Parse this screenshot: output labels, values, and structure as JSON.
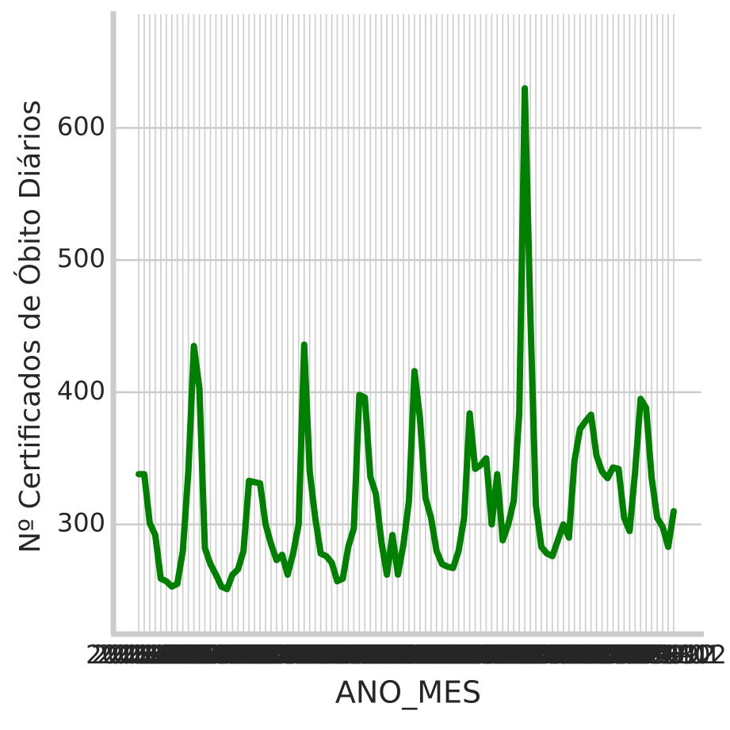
{
  "chart_data": {
    "type": "line",
    "x_label": "ANO_MES",
    "y_label": "Nº Certificados de Óbito Diários",
    "categories": [
      "2015-01",
      "2015-02",
      "2015-03",
      "2015-04",
      "2015-05",
      "2015-06",
      "2015-07",
      "2015-08",
      "2015-09",
      "2015-10",
      "2015-11",
      "2015-12",
      "2016-01",
      "2016-02",
      "2016-03",
      "2016-04",
      "2016-05",
      "2016-06",
      "2016-07",
      "2016-08",
      "2016-09",
      "2016-10",
      "2016-11",
      "2016-12",
      "2017-01",
      "2017-02",
      "2017-03",
      "2017-04",
      "2017-05",
      "2017-06",
      "2017-07",
      "2017-08",
      "2017-09",
      "2017-10",
      "2017-11",
      "2017-12",
      "2018-01",
      "2018-02",
      "2018-03",
      "2018-04",
      "2018-05",
      "2018-06",
      "2018-07",
      "2018-08",
      "2018-09",
      "2018-10",
      "2018-11",
      "2018-12",
      "2019-01",
      "2019-02",
      "2019-03",
      "2019-04",
      "2019-05",
      "2019-06",
      "2019-07",
      "2019-08",
      "2019-09",
      "2019-10",
      "2019-11",
      "2019-12",
      "2020-01",
      "2020-02",
      "2020-03",
      "2020-04",
      "2020-05",
      "2020-06",
      "2020-07",
      "2020-08",
      "2020-09",
      "2020-10",
      "2020-11",
      "2020-12",
      "2021-01",
      "2021-02",
      "2021-03",
      "2021-04",
      "2021-05",
      "2021-06",
      "2021-07",
      "2021-08",
      "2021-09",
      "2021-10",
      "2021-11",
      "2021-12",
      "2022-01",
      "2022-02",
      "2022-03",
      "2022-04",
      "2022-05",
      "2022-06",
      "2022-07",
      "2022-08",
      "2022-09",
      "2022-10",
      "2022-11",
      "2022-12",
      "2023-01",
      "2023-02"
    ],
    "series": [
      {
        "color": "#008000",
        "values": [
          338,
          338,
          301,
          292,
          259,
          257,
          253,
          255,
          280,
          340,
          435,
          403,
          282,
          270,
          262,
          253,
          251,
          262,
          266,
          280,
          333,
          332,
          331,
          300,
          285,
          273,
          277,
          262,
          278,
          300,
          436,
          340,
          305,
          278,
          276,
          271,
          257,
          259,
          283,
          297,
          398,
          396,
          336,
          323,
          287,
          262,
          292,
          262,
          285,
          318,
          416,
          380,
          320,
          305,
          280,
          270,
          268,
          267,
          280,
          305,
          384,
          342,
          345,
          350,
          300,
          338,
          288,
          300,
          318,
          385,
          630,
          460,
          315,
          283,
          278,
          276,
          288,
          300,
          290,
          348,
          372,
          378,
          383,
          352,
          340,
          335,
          343,
          342,
          305,
          295,
          340,
          395,
          388,
          335,
          305,
          298,
          283,
          310
        ]
      }
    ],
    "ylim": [
      217,
      686
    ],
    "yticks": [
      300,
      400,
      500,
      600
    ],
    "grid": true
  }
}
